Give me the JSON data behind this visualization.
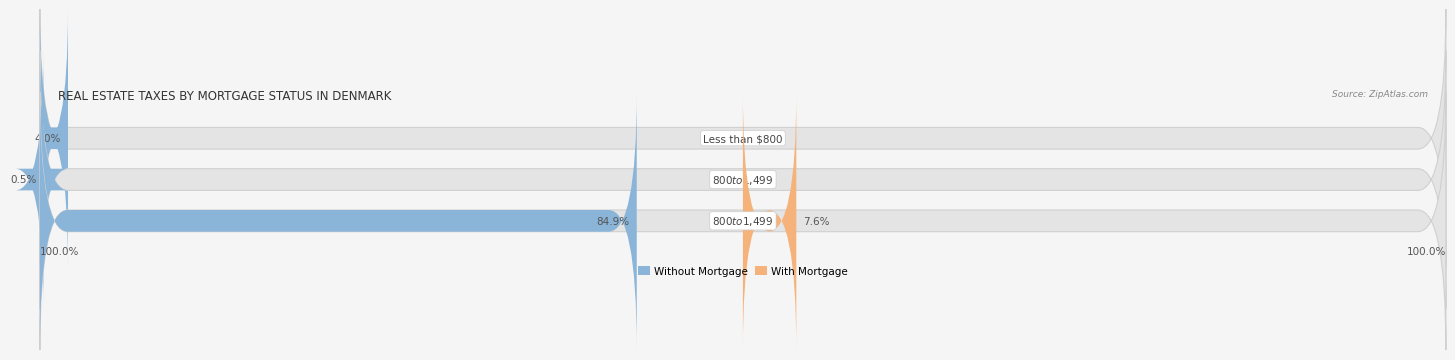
{
  "title": "REAL ESTATE TAXES BY MORTGAGE STATUS IN DENMARK",
  "source": "Source: ZipAtlas.com",
  "rows": [
    {
      "label": "Less than $800",
      "without_mortgage": 4.0,
      "with_mortgage": 0.0
    },
    {
      "label": "$800 to $1,499",
      "without_mortgage": 0.5,
      "with_mortgage": 0.0
    },
    {
      "label": "$800 to $1,499",
      "without_mortgage": 84.9,
      "with_mortgage": 7.6
    }
  ],
  "color_without": "#8ab4d8",
  "color_with": "#f5b27a",
  "bar_bg_color": "#e4e4e4",
  "row_bg_color": "#ececec",
  "fig_bg_color": "#f5f5f5",
  "label_bg_color": "#ffffff",
  "legend_without": "Without Mortgage",
  "legend_with": "With Mortgage",
  "axis_left_label": "100.0%",
  "axis_right_label": "100.0%",
  "total": 100.0,
  "title_fontsize": 8.5,
  "source_fontsize": 6.5,
  "bar_label_fontsize": 7.5,
  "pct_fontsize": 7.5,
  "legend_fontsize": 7.5,
  "axis_label_fontsize": 7.5
}
